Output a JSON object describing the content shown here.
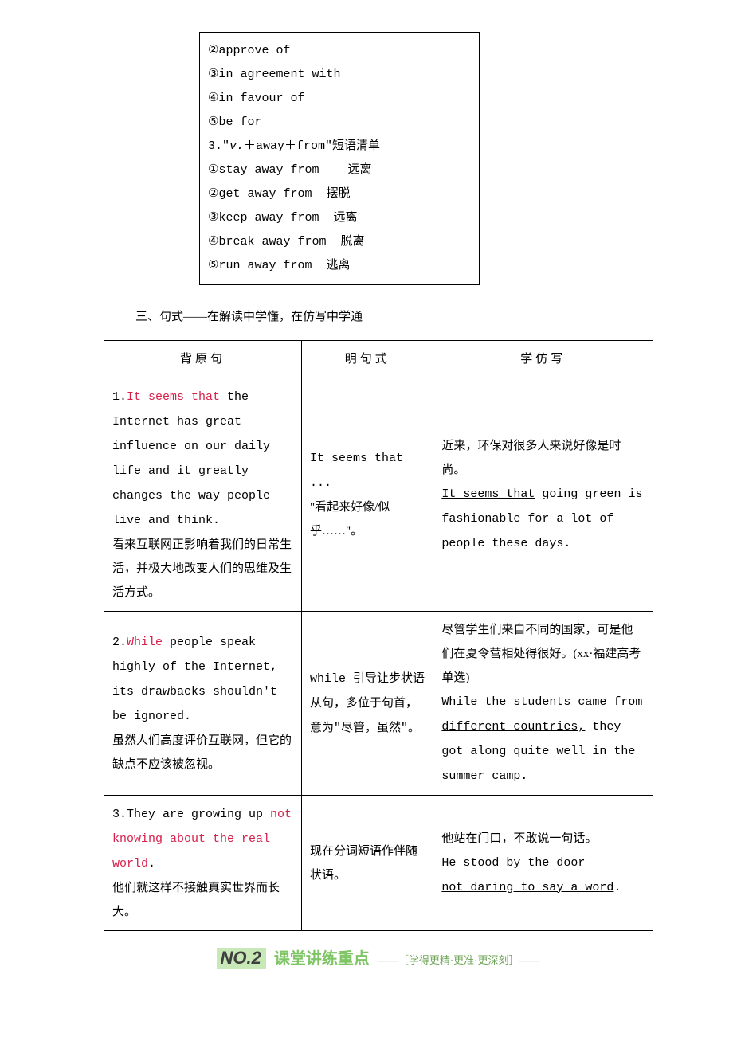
{
  "box": {
    "items": [
      "②approve of",
      "③in agreement with",
      "④in favour of",
      "⑤be for"
    ],
    "phrase_head_prefix": "3.\"",
    "phrase_head_italic": "v.",
    "phrase_head_suffix": "＋away＋from\"短语清单",
    "phrases": [
      {
        "n": "①",
        "t": "stay away from",
        "gap": "    ",
        "m": "远离"
      },
      {
        "n": "②",
        "t": "get away from",
        "gap": "  ",
        "m": "摆脱"
      },
      {
        "n": "③",
        "t": "keep away from",
        "gap": "  ",
        "m": "远离"
      },
      {
        "n": "④",
        "t": "break away from",
        "gap": "  ",
        "m": "脱离"
      },
      {
        "n": "⑤",
        "t": "run away from",
        "gap": "  ",
        "m": "逃离"
      }
    ]
  },
  "heading3": "三、句式——在解读中学懂，在仿写中学通",
  "table": {
    "headers": [
      "背原句",
      "明句式",
      "学仿写"
    ],
    "rows": [
      {
        "c1_num": "1.",
        "c1_red": "It seems that",
        "c1_rest": " the Internet has great influence on our daily life and it greatly changes the way people live and think.",
        "c1_cn": "看来互联网正影响着我们的日常生活，并极大地改变人们的思维及生活方式。",
        "c2_a": "It seems that ...",
        "c2_b": "\"看起来好像/似乎……\"。",
        "c3_cn": "近来，环保对很多人来说好像是时尚。",
        "c3_ul": "It seems that",
        "c3_rest": " going green is fashionable for a lot of people these days."
      },
      {
        "c1_num": "2.",
        "c1_red": "While",
        "c1_rest": " people speak highly of the Internet, its drawbacks shouldn't be ignored.",
        "c1_cn": "虽然人们高度评价互联网，但它的缺点不应该被忽视。",
        "c2_a": "while 引导让步状语从句，多位于句首，意为\"尽管，虽然\"。",
        "c3_cn": "尽管学生们来自不同的国家，可是他们在夏令营相处得很好。(xx·福建高考单选)",
        "c3_ul": "While the students came from different countries,",
        "c3_rest": " they got along quite well in the summer camp."
      },
      {
        "c1_num": "3.",
        "c1_plain": "They are growing up ",
        "c1_red": "not knowing about the real world",
        "c1_rest2": ".",
        "c1_cn": "他们就这样不接触真实世界而长大。",
        "c2_a": "现在分词短语作伴随状语。",
        "c3_cn": "他站在门口，不敢说一句话。",
        "c3_plain": "He stood by the door",
        "c3_ul2": "not daring to say a word",
        "c3_tail": "."
      }
    ]
  },
  "banner": {
    "no": "NO.2",
    "main": "课堂讲练重点",
    "sub": "——［学得更精·更准·更深刻］——"
  },
  "colors": {
    "red": "#d6204b",
    "green_line": "#8fcf73",
    "green_text": "#7fc565",
    "green_bg": "#c9e8b8"
  }
}
